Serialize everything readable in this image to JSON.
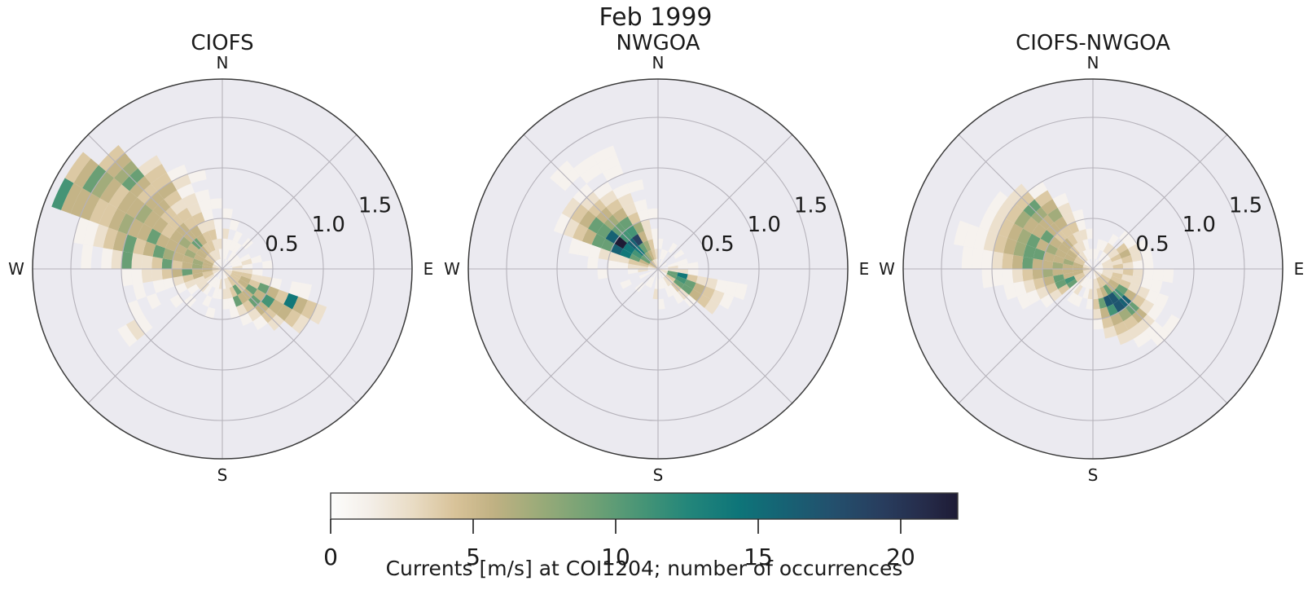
{
  "suptitle": "Feb 1999",
  "style": {
    "axes_background": "#ebeaf0",
    "grid_color": "#b5b2ba",
    "spine_color": "#3a3a3a",
    "text_color": "#1a1a1a",
    "figure_background": "#ffffff"
  },
  "chart_data": {
    "type": "heatmap",
    "subtype": "polar_2d_histogram_grid",
    "suptitle": "Feb 1999",
    "angle_convention": "compass degrees clockwise from North; angular bin width 10 deg; key = bin index (bin i covers i*10 to i*10+10 deg)",
    "radial_bin_width": 0.1,
    "rmax": 1.879,
    "radial_ticks": [
      "0.5",
      "1.0",
      "1.5"
    ],
    "radial_tick_values": [
      0.5,
      1.0,
      1.5
    ],
    "compass_labels": [
      "N",
      "E",
      "S",
      "W"
    ],
    "grid": true,
    "colorbar": {
      "label": "Currents [m/s] at COI1204; number of occurrences",
      "ticks": [
        0,
        5,
        10,
        15,
        20
      ],
      "vmin": 0,
      "vmax": 22
    },
    "colormap_stops": [
      [
        0.0,
        "#fdfdfc"
      ],
      [
        0.06,
        "#f4efe9"
      ],
      [
        0.13,
        "#e9dcc5"
      ],
      [
        0.2,
        "#d8c298"
      ],
      [
        0.26,
        "#c0b183"
      ],
      [
        0.33,
        "#9cab79"
      ],
      [
        0.42,
        "#6fa175"
      ],
      [
        0.5,
        "#459476"
      ],
      [
        0.57,
        "#23867a"
      ],
      [
        0.65,
        "#0e7579"
      ],
      [
        0.72,
        "#166374"
      ],
      [
        0.8,
        "#23506d"
      ],
      [
        0.88,
        "#283d5e"
      ],
      [
        0.95,
        "#252b49"
      ],
      [
        1.0,
        "#1e1b35"
      ]
    ],
    "plots": [
      {
        "title": "CIOFS",
        "cells": {
          "0": [
            1,
            1,
            1,
            2.5,
            0,
            1
          ],
          "1": [
            0,
            1,
            1,
            0,
            1
          ],
          "2": [
            1,
            0,
            1,
            1
          ],
          "3": [
            0,
            1,
            1
          ],
          "4": [
            1,
            1,
            0,
            1
          ],
          "5": [
            0,
            1
          ],
          "6": [
            1,
            1,
            1
          ],
          "7": [
            0,
            1,
            2.5,
            1
          ],
          "8": [
            1,
            2.5,
            1,
            0,
            1
          ],
          "9": [
            1,
            2.5,
            2.5,
            1
          ],
          "10": [
            2.5,
            4,
            4,
            2.5,
            2.5,
            1,
            0,
            1,
            1
          ],
          "11": [
            2.5,
            4,
            5.5,
            4,
            9.5,
            5.5,
            4,
            14,
            5.5,
            4,
            2.5
          ],
          "12": [
            2.5,
            4,
            5.5,
            9.5,
            5.5,
            11,
            5.5,
            5.5,
            4,
            2.5
          ],
          "13": [
            2.5,
            4,
            4,
            5.5,
            9.5,
            5.5,
            4,
            2.5
          ],
          "14": [
            2.5,
            4,
            9.5,
            5.5,
            4,
            2.5,
            1
          ],
          "15": [
            1,
            2.5,
            4,
            9.5,
            2.5,
            1
          ],
          "16": [
            1,
            2.5,
            2.5,
            1,
            1
          ],
          "17": [
            1,
            1,
            2.5,
            1
          ],
          "18": [
            1,
            2.5,
            1
          ],
          "19": [
            0,
            1,
            1,
            0,
            1
          ],
          "20": [
            1,
            1,
            0,
            1
          ],
          "21": [
            0,
            1,
            1
          ],
          "22": [
            0,
            1,
            2.5,
            0,
            1
          ],
          "23": [
            1,
            2.5,
            2.5,
            1,
            0,
            1,
            0,
            0,
            0,
            1,
            2.5,
            1
          ],
          "24": [
            2.5,
            4,
            2.5,
            2.5,
            1,
            0,
            0,
            1,
            0,
            1
          ],
          "25": [
            2.5,
            4,
            5.5,
            4,
            2.5,
            1,
            1,
            0,
            1
          ],
          "26": [
            4,
            5.5,
            5.5,
            9.5,
            5.5,
            4,
            2.5,
            2.5,
            1,
            1
          ],
          "27": [
            4,
            5.5,
            7,
            5.5,
            4,
            9.5,
            4,
            2.5,
            2.5,
            9.5,
            2.5,
            1,
            0,
            1
          ],
          "28": [
            2.5,
            5.5,
            7,
            5.5,
            5.5,
            7,
            9.5,
            5.5,
            4,
            9.5,
            5.5,
            4,
            2.5,
            1,
            1
          ],
          "29": [
            2.5,
            5.5,
            5.5,
            7,
            5.5,
            5.5,
            5.5,
            9.5,
            5.5,
            5.5,
            7,
            5.5,
            4,
            4,
            5.5,
            5.5,
            5.5,
            11
          ],
          "30": [
            1,
            4,
            5.5,
            5.5,
            7,
            5.5,
            4,
            5.5,
            5.5,
            7,
            5.5,
            5.5,
            4,
            5.5,
            7,
            9.5,
            5.5,
            4
          ],
          "31": [
            1,
            4,
            5.5,
            9.5,
            5.5,
            5.5,
            4,
            4,
            5.5,
            5.5,
            4,
            5.5,
            9.5,
            7,
            5.5,
            4
          ],
          "32": [
            1,
            2.5,
            4,
            5.5,
            5.5,
            4,
            4,
            2.5,
            4,
            5.5,
            4,
            4,
            2.5
          ],
          "33": [
            1,
            2.5,
            4,
            4,
            2.5,
            4,
            2.5,
            2.5,
            1,
            2.5,
            1
          ],
          "34": [
            1,
            2.5,
            2.5,
            4,
            2.5,
            1,
            1,
            1,
            0,
            1
          ],
          "35": [
            1,
            1,
            2.5,
            1,
            1,
            0,
            1
          ]
        }
      },
      {
        "title": "NWGOA",
        "cells": {
          "0": [
            1,
            0,
            1
          ],
          "1": [
            0,
            1
          ],
          "2": [
            1,
            1
          ],
          "3": [
            0,
            0,
            1
          ],
          "5": [
            1,
            0,
            1
          ],
          "7": [
            0,
            1,
            1
          ],
          "8": [
            1,
            2.5,
            1,
            1
          ],
          "9": [
            1,
            2.5,
            2.5,
            1
          ],
          "10": [
            2.5,
            9.5,
            14,
            4,
            2.5,
            2.5,
            1,
            1,
            1
          ],
          "11": [
            2.5,
            9.5,
            11,
            9.5,
            5.5,
            4,
            2.5,
            1
          ],
          "12": [
            1,
            4,
            9.5,
            9.5,
            5.5,
            4,
            2.5
          ],
          "13": [
            1,
            2.5,
            4,
            2.5,
            1
          ],
          "14": [
            1,
            2.5,
            1,
            1
          ],
          "15": [
            0,
            1,
            1
          ],
          "16": [
            1,
            1
          ],
          "17": [
            0,
            1,
            0,
            1
          ],
          "18": [
            1,
            1,
            2.5
          ],
          "20": [
            1,
            1
          ],
          "21": [
            0,
            1
          ],
          "22": [
            1,
            0,
            1
          ],
          "24": [
            1,
            1,
            0,
            1
          ],
          "26": [
            1,
            2.5,
            1,
            0,
            0,
            1
          ],
          "27": [
            1,
            2.5,
            2.5,
            1,
            1,
            0,
            1
          ],
          "28": [
            2.5,
            4,
            4,
            2.5,
            2.5,
            2.5,
            1,
            1,
            1
          ],
          "29": [
            4,
            5.5,
            9.5,
            14,
            16,
            9.5,
            9.5,
            5.5,
            4,
            2.5,
            1
          ],
          "30": [
            5.5,
            9.5,
            11,
            14,
            22,
            16,
            9.5,
            9.5,
            5.5,
            4,
            2.5
          ],
          "31": [
            5.5,
            9.5,
            14,
            16,
            11,
            9.5,
            7,
            5.5,
            4,
            2.5,
            1,
            0,
            1,
            1
          ],
          "32": [
            4,
            7,
            9.5,
            19,
            11,
            9.5,
            5.5,
            4,
            2.5,
            1,
            0,
            1,
            1
          ],
          "33": [
            2.5,
            5.5,
            7,
            5.5,
            7,
            4,
            2.5,
            2.5,
            1,
            0,
            1,
            1,
            1
          ],
          "34": [
            2.5,
            4,
            4,
            2.5,
            2.5,
            1,
            1,
            0,
            1
          ],
          "35": [
            1,
            2.5,
            1,
            1,
            0,
            1
          ]
        }
      },
      {
        "title": "CIOFS-NWGOA",
        "cells": {
          "0": [
            1,
            1
          ],
          "1": [
            0,
            1,
            1
          ],
          "2": [
            1,
            0,
            1
          ],
          "3": [
            0,
            1,
            2.5,
            1
          ],
          "4": [
            1,
            1,
            2.5,
            0,
            1
          ],
          "5": [
            0,
            1,
            2.5,
            4,
            1
          ],
          "6": [
            1,
            2.5,
            4,
            5.5,
            2.5,
            1
          ],
          "7": [
            1,
            2.5,
            2.5,
            4,
            2.5,
            1
          ],
          "8": [
            1,
            2.5,
            4,
            2.5,
            1,
            1
          ],
          "9": [
            1,
            2.5,
            2.5,
            4,
            2.5,
            1,
            1,
            1
          ],
          "10": [
            1,
            2.5,
            4,
            2.5,
            2.5,
            1,
            1
          ],
          "11": [
            1,
            2.5,
            4,
            4,
            2.5,
            2.5,
            1,
            1
          ],
          "12": [
            2.5,
            4,
            5.5,
            9.5,
            5.5,
            4,
            2.5,
            1,
            0,
            1
          ],
          "13": [
            2.5,
            4,
            5.5,
            11,
            16,
            9.5,
            5.5,
            2.5,
            1,
            1
          ],
          "14": [
            2.5,
            4,
            9.5,
            17,
            17,
            7,
            4,
            2.5,
            1
          ],
          "15": [
            2.5,
            4,
            5.5,
            17,
            11,
            5.5,
            4,
            2.5
          ],
          "16": [
            1,
            2.5,
            4,
            9.5,
            5.5,
            4,
            2.5
          ],
          "17": [
            1,
            2.5,
            2.5,
            4,
            2.5,
            1
          ],
          "18": [
            1,
            1,
            2.5,
            1
          ],
          "19": [
            0,
            1,
            1
          ],
          "20": [
            1,
            1,
            0,
            1
          ],
          "21": [
            0,
            1,
            2.5,
            1
          ],
          "22": [
            1,
            2.5,
            1
          ],
          "23": [
            2.5,
            4,
            9.5,
            4,
            2.5,
            1
          ],
          "24": [
            2.5,
            4,
            11,
            9.5,
            4,
            2.5,
            1,
            1
          ],
          "25": [
            2.5,
            5.5,
            5.5,
            9.5,
            5.5,
            4,
            2.5,
            1,
            1
          ],
          "26": [
            4,
            5.5,
            5.5,
            5.5,
            7,
            5.5,
            4,
            2.5,
            1,
            1,
            1
          ],
          "27": [
            4,
            5.5,
            5.5,
            7,
            5.5,
            5.5,
            9.5,
            5.5,
            4,
            2.5,
            1,
            1,
            1
          ],
          "28": [
            2.5,
            5.5,
            7,
            5.5,
            5.5,
            9.5,
            9.5,
            7,
            5.5,
            4,
            2.5,
            1,
            1,
            1
          ],
          "29": [
            2.5,
            4,
            5.5,
            5.5,
            7,
            5.5,
            9.5,
            7,
            5.5,
            4,
            2.5,
            1
          ],
          "30": [
            1,
            4,
            5.5,
            5.5,
            5.5,
            9.5,
            5.5,
            5.5,
            7,
            4,
            2.5,
            1
          ],
          "31": [
            1,
            2.5,
            4,
            5.5,
            4,
            5.5,
            5.5,
            7,
            9.5,
            4,
            2.5
          ],
          "32": [
            1,
            2.5,
            2.5,
            4,
            4,
            5.5,
            7,
            5.5,
            4,
            1
          ],
          "33": [
            1,
            1,
            2.5,
            2.5,
            4,
            2.5,
            2.5,
            1
          ],
          "34": [
            0,
            1,
            1,
            2.5,
            1,
            1
          ],
          "35": [
            1,
            1,
            0,
            1
          ]
        }
      }
    ]
  }
}
